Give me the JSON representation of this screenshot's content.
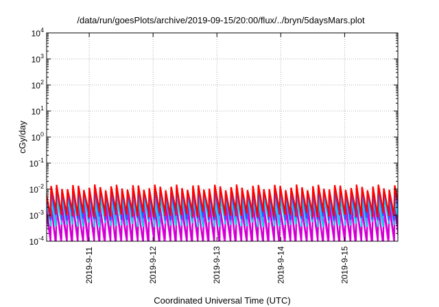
{
  "chart_data": {
    "type": "line",
    "title": "/data/run/goesPlots/archive/2019-09-15/20:00/flux/../bryn/5daysMars.plot",
    "xlabel": "Coordinated Universal Time (UTC)",
    "ylabel": "cGy/day",
    "x_tick_labels": [
      "2019-9-11",
      "2019-9-12",
      "2019-9-13",
      "2019-9-14",
      "2019-9-15"
    ],
    "y_tick_labels": [
      {
        "base": "10",
        "exp": "-4"
      },
      {
        "base": "10",
        "exp": "-3"
      },
      {
        "base": "10",
        "exp": "-2"
      },
      {
        "base": "10",
        "exp": "-1"
      },
      {
        "base": "10",
        "exp": "0"
      },
      {
        "base": "10",
        "exp": "1"
      },
      {
        "base": "10",
        "exp": "2"
      },
      {
        "base": "10",
        "exp": "3"
      },
      {
        "base": "10",
        "exp": "4"
      }
    ],
    "y_scale": "log",
    "ylim": [
      0.0001,
      10000
    ],
    "xlim": [
      "2019-09-10T08:00",
      "2019-09-15T20:00"
    ],
    "grid": true,
    "legend": "none",
    "series_colors": [
      "#ff00ff",
      "#cc00cc",
      "#00e0e0",
      "#4aa0ff",
      "#3050ff",
      "#ff0000"
    ],
    "sawtooth_period_hours": 2.05,
    "series": [
      {
        "color": "#ff00ff",
        "values_at_peak": 0.0018,
        "values_at_trough": 8e-05
      },
      {
        "color": "#cc00cc",
        "values_at_peak": 0.0025,
        "values_at_trough": 0.00011
      },
      {
        "color": "#00e0e0",
        "values_at_peak": 0.004,
        "values_at_trough": 0.0005
      },
      {
        "color": "#4aa0ff",
        "values_at_peak": 0.006,
        "values_at_trough": 0.0007
      },
      {
        "color": "#3050ff",
        "values_at_peak": 0.009,
        "values_at_trough": 0.0009
      },
      {
        "color": "#ff0000",
        "values_at_peak": 0.012,
        "values_at_trough": 0.0012
      }
    ]
  }
}
